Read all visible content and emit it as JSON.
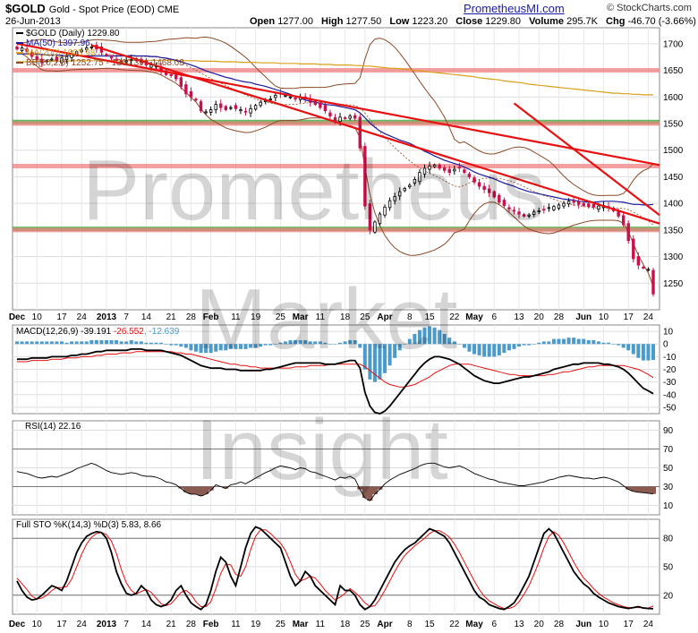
{
  "header": {
    "symbol": "$GOLD",
    "subtitle": "Gold - Spot Price (EOD)  CME",
    "date": "26-Jun-2013",
    "website": "PrometheusMI.com",
    "source": "© StockCharts.com",
    "ohlc": {
      "open_label": "Open",
      "open": "1277.00",
      "high_label": "High",
      "high": "1277.50",
      "low_label": "Low",
      "low": "1223.20",
      "close_label": "Close",
      "close": "1229.80",
      "volume_label": "Volume",
      "volume": "295.7K",
      "chg_label": "Chg",
      "chg": "-46.70 (-3.66%)"
    }
  },
  "watermark": {
    "line1": "Prometheus",
    "line2": "Market",
    "line3": "Insight"
  },
  "colors": {
    "up": "#000000",
    "down": "#c8104a",
    "ma50": "#1a1a9e",
    "ma200": "#d8a018",
    "bb": "#8b4a28",
    "trend": "#e81010",
    "support_green": "#2ea82e",
    "resist_pink": "#f08080",
    "macd_hist": "#4a9acc",
    "rsi_fill": "#8b5a50",
    "signal": "#e81010"
  },
  "chart_data": [
    {
      "type": "candlestick",
      "legend": [
        "$GOLD (Daily) 1229.80",
        "MA(50) 1397.96",
        "MA(200) 1603.98",
        "BB(20,2.0) 1252.75 - 1360.39 - 1468.03"
      ],
      "ylim": [
        1200,
        1730
      ],
      "yticks": [
        "1700",
        "1650",
        "1600",
        "1550",
        "1500",
        "1450",
        "1400",
        "1350",
        "1300",
        "1250"
      ],
      "xticks": [
        "Dec",
        "10",
        "17",
        "24",
        "2013",
        "7",
        "14",
        "21",
        "28",
        "Feb",
        "11",
        "19",
        "25",
        "Mar",
        "11",
        "18",
        "25",
        "Apr",
        "8",
        "15",
        "22",
        "May",
        "6",
        "13",
        "20",
        "28",
        "Jun",
        "10",
        "17",
        "24"
      ],
      "horizontal_levels": [
        {
          "value": 1650,
          "color": "pink"
        },
        {
          "value": 1553,
          "color": "green"
        },
        {
          "value": 1550,
          "color": "pink"
        },
        {
          "value": 1470,
          "color": "pink"
        },
        {
          "value": 1352,
          "color": "green"
        },
        {
          "value": 1350,
          "color": "pink"
        }
      ],
      "trendlines": [
        {
          "from": [
            0,
            1700
          ],
          "to": [
            144,
            1472
          ]
        },
        {
          "from": [
            15,
            1697
          ],
          "to": [
            144,
            1362
          ]
        },
        {
          "from": [
            100,
            1588
          ],
          "to": [
            144,
            1378
          ]
        }
      ],
      "closes": [
        1690,
        1692,
        1685,
        1676,
        1670,
        1664,
        1668,
        1671,
        1668,
        1673,
        1676,
        1680,
        1685,
        1688,
        1692,
        1694,
        1690,
        1684,
        1678,
        1673,
        1669,
        1666,
        1668,
        1670,
        1668,
        1664,
        1660,
        1660,
        1658,
        1650,
        1642,
        1640,
        1634,
        1620,
        1606,
        1600,
        1594,
        1574,
        1572,
        1576,
        1586,
        1580,
        1576,
        1580,
        1578,
        1576,
        1572,
        1578,
        1584,
        1590,
        1593,
        1596,
        1603,
        1606,
        1603,
        1600,
        1596,
        1600,
        1596,
        1590,
        1586,
        1580,
        1574,
        1564,
        1556,
        1562,
        1560,
        1564,
        1560,
        1504,
        1395,
        1350,
        1365,
        1380,
        1393,
        1405,
        1413,
        1422,
        1428,
        1434,
        1445,
        1458,
        1466,
        1470,
        1472,
        1466,
        1462,
        1458,
        1464,
        1467,
        1458,
        1450,
        1440,
        1432,
        1426,
        1420,
        1412,
        1402,
        1396,
        1390,
        1386,
        1380,
        1376,
        1378,
        1384,
        1386,
        1388,
        1392,
        1394,
        1397,
        1400,
        1404,
        1402,
        1398,
        1396,
        1394,
        1393,
        1395,
        1396,
        1392,
        1386,
        1376,
        1360,
        1330,
        1296,
        1284,
        1279,
        1276,
        1229.8
      ],
      "ma50": [
        1681,
        1681,
        1681,
        1681,
        1680,
        1680,
        1679,
        1679,
        1679,
        1678,
        1678,
        1678,
        1678,
        1677,
        1677,
        1677,
        1677,
        1677,
        1677,
        1677,
        1677,
        1677,
        1677,
        1678,
        1677,
        1677,
        1677,
        1676,
        1676,
        1674,
        1673,
        1671,
        1669,
        1666,
        1663,
        1660,
        1657,
        1653,
        1649,
        1646,
        1643,
        1640,
        1637,
        1635,
        1632,
        1630,
        1628,
        1627,
        1624,
        1622,
        1620,
        1617,
        1614,
        1611,
        1608,
        1605,
        1601,
        1598,
        1594,
        1592,
        1590,
        1588,
        1586,
        1585,
        1584,
        1582,
        1580,
        1578,
        1576,
        1570,
        1561,
        1551,
        1543,
        1536,
        1531,
        1527,
        1523,
        1519,
        1516,
        1513,
        1508,
        1503,
        1498,
        1494,
        1489,
        1485,
        1481,
        1478,
        1475,
        1472,
        1468,
        1464,
        1459,
        1455,
        1452,
        1449,
        1446,
        1442,
        1438,
        1435,
        1432,
        1428,
        1425,
        1422,
        1420,
        1418,
        1416,
        1414,
        1412,
        1410,
        1408,
        1407,
        1406,
        1404,
        1403,
        1402,
        1402,
        1403,
        1404,
        1404,
        1404,
        1403,
        1402,
        1400,
        1398,
        1398,
        1397,
        1397,
        1398
      ],
      "ma200": [
        1666,
        1666,
        1666,
        1667,
        1667,
        1667,
        1667,
        1667,
        1667,
        1667,
        1667,
        1668,
        1668,
        1668,
        1668,
        1668,
        1668,
        1668,
        1668,
        1668,
        1668,
        1668,
        1668,
        1669,
        1669,
        1669,
        1669,
        1669,
        1669,
        1669,
        1669,
        1669,
        1668,
        1668,
        1668,
        1668,
        1668,
        1667,
        1667,
        1667,
        1667,
        1666,
        1666,
        1666,
        1666,
        1665,
        1665,
        1665,
        1665,
        1664,
        1664,
        1664,
        1664,
        1663,
        1663,
        1663,
        1663,
        1662,
        1662,
        1662,
        1662,
        1661,
        1661,
        1661,
        1660,
        1660,
        1660,
        1660,
        1659,
        1659,
        1658,
        1658,
        1657,
        1656,
        1655,
        1654,
        1654,
        1653,
        1652,
        1651,
        1650,
        1649,
        1648,
        1647,
        1646,
        1645,
        1644,
        1643,
        1642,
        1641,
        1640,
        1639,
        1638,
        1636,
        1635,
        1634,
        1633,
        1632,
        1630,
        1629,
        1628,
        1627,
        1626,
        1624,
        1623,
        1622,
        1621,
        1620,
        1619,
        1618,
        1617,
        1616,
        1615,
        1614,
        1613,
        1612,
        1611,
        1610,
        1609,
        1608,
        1607,
        1607,
        1606,
        1606,
        1605,
        1605,
        1604,
        1604,
        1604
      ]
    },
    {
      "type": "line+histogram",
      "legend": [
        "MACD(12,26,9) -39.191",
        "-26.552",
        "-12.639"
      ],
      "ylim": [
        -55,
        15
      ],
      "yticks": [
        "10",
        "0",
        "-10",
        "-20",
        "-30",
        "-40",
        "-50"
      ],
      "macd_line": [
        -12,
        -12,
        -12,
        -11,
        -11,
        -11,
        -11,
        -10,
        -10,
        -10,
        -10,
        -9,
        -9,
        -8,
        -8,
        -7,
        -6,
        -6,
        -5,
        -5,
        -5,
        -5,
        -5,
        -4,
        -4,
        -4,
        -5,
        -5,
        -5,
        -5,
        -6,
        -7,
        -8,
        -9,
        -11,
        -13,
        -15,
        -17,
        -18,
        -19,
        -19,
        -19,
        -20,
        -20,
        -20,
        -21,
        -21,
        -21,
        -21,
        -21,
        -20,
        -20,
        -19,
        -18,
        -17,
        -16,
        -15,
        -15,
        -15,
        -15,
        -15,
        -15,
        -16,
        -16,
        -16,
        -15,
        -14,
        -13,
        -13,
        -19,
        -38,
        -49,
        -54,
        -55,
        -53,
        -49,
        -44,
        -39,
        -34,
        -29,
        -24,
        -19,
        -15,
        -12,
        -10,
        -10,
        -11,
        -12,
        -14,
        -16,
        -19,
        -22,
        -25,
        -27,
        -29,
        -30,
        -31,
        -31,
        -30,
        -29,
        -28,
        -27,
        -26,
        -26,
        -25,
        -24,
        -23,
        -22,
        -20,
        -19,
        -18,
        -17,
        -16,
        -16,
        -15,
        -15,
        -15,
        -15,
        -16,
        -16,
        -17,
        -18,
        -20,
        -23,
        -27,
        -31,
        -35,
        -37,
        -39.2
      ],
      "signal_line": [
        -14,
        -14,
        -14,
        -13,
        -13,
        -13,
        -13,
        -12,
        -12,
        -12,
        -11,
        -11,
        -11,
        -10,
        -10,
        -10,
        -9,
        -9,
        -8,
        -8,
        -8,
        -7,
        -7,
        -7,
        -6,
        -6,
        -6,
        -6,
        -6,
        -6,
        -6,
        -6,
        -7,
        -7,
        -8,
        -8,
        -9,
        -10,
        -11,
        -12,
        -13,
        -14,
        -15,
        -16,
        -16,
        -17,
        -17,
        -18,
        -18,
        -19,
        -19,
        -19,
        -19,
        -19,
        -19,
        -19,
        -18,
        -18,
        -18,
        -17,
        -17,
        -17,
        -17,
        -16,
        -16,
        -16,
        -16,
        -16,
        -16,
        -16,
        -18,
        -21,
        -24,
        -27,
        -30,
        -32,
        -33,
        -34,
        -34,
        -33,
        -32,
        -30,
        -28,
        -26,
        -23,
        -21,
        -19,
        -17,
        -16,
        -16,
        -16,
        -16,
        -17,
        -18,
        -19,
        -20,
        -21,
        -22,
        -23,
        -24,
        -24,
        -25,
        -25,
        -25,
        -25,
        -25,
        -25,
        -24,
        -24,
        -23,
        -22,
        -22,
        -21,
        -20,
        -19,
        -18,
        -18,
        -17,
        -17,
        -17,
        -17,
        -17,
        -17,
        -18,
        -19,
        -20,
        -22,
        -24,
        -26.6
      ]
    },
    {
      "type": "line",
      "legend": [
        "RSI(14) 22.16"
      ],
      "ylim": [
        0,
        100
      ],
      "yticks": [
        "90",
        "70",
        "50",
        "30",
        "10"
      ],
      "rsi": [
        46,
        45,
        44,
        42,
        40,
        39,
        40,
        41,
        40,
        42,
        44,
        46,
        49,
        51,
        53,
        55,
        53,
        50,
        47,
        45,
        44,
        43,
        44,
        45,
        44,
        42,
        41,
        41,
        40,
        38,
        35,
        34,
        32,
        28,
        24,
        22,
        22,
        20,
        22,
        26,
        32,
        30,
        28,
        32,
        33,
        35,
        33,
        36,
        39,
        42,
        45,
        47,
        50,
        52,
        51,
        50,
        48,
        50,
        49,
        46,
        45,
        43,
        41,
        39,
        37,
        40,
        39,
        41,
        38,
        27,
        18,
        15,
        22,
        27,
        33,
        37,
        40,
        43,
        45,
        47,
        49,
        52,
        54,
        55,
        55,
        53,
        51,
        50,
        51,
        52,
        50,
        47,
        44,
        42,
        40,
        38,
        37,
        35,
        34,
        33,
        32,
        31,
        31,
        32,
        33,
        34,
        35,
        37,
        38,
        40,
        41,
        42,
        41,
        40,
        39,
        39,
        38,
        39,
        40,
        39,
        37,
        35,
        31,
        27,
        25,
        24,
        23.5,
        23,
        22.16
      ]
    },
    {
      "type": "line",
      "legend": [
        "Full STO %K(14,3) %D(3) 5.83, 8.66"
      ],
      "ylim": [
        0,
        100
      ],
      "yticks": [
        "80",
        "50",
        "20"
      ],
      "k": [
        35,
        25,
        18,
        15,
        16,
        20,
        25,
        30,
        28,
        25,
        35,
        50,
        65,
        75,
        82,
        85,
        87,
        86,
        80,
        65,
        45,
        32,
        22,
        20,
        22,
        30,
        25,
        15,
        10,
        8,
        10,
        15,
        25,
        30,
        20,
        12,
        8,
        5,
        10,
        25,
        45,
        60,
        55,
        40,
        30,
        50,
        70,
        85,
        92,
        90,
        85,
        80,
        75,
        70,
        55,
        40,
        30,
        35,
        45,
        40,
        30,
        25,
        20,
        15,
        10,
        30,
        25,
        25,
        20,
        10,
        5,
        8,
        15,
        25,
        35,
        45,
        55,
        62,
        68,
        72,
        75,
        80,
        85,
        90,
        88,
        85,
        82,
        75,
        65,
        55,
        45,
        35,
        25,
        18,
        15,
        10,
        8,
        6,
        5,
        8,
        12,
        20,
        30,
        40,
        55,
        70,
        85,
        90,
        85,
        75,
        65,
        55,
        45,
        38,
        32,
        28,
        22,
        18,
        15,
        12,
        10,
        8,
        7,
        6,
        7,
        8,
        6.5,
        6,
        5.83
      ],
      "d": [
        38,
        32,
        26,
        19,
        16,
        17,
        20,
        25,
        28,
        28,
        29,
        37,
        50,
        63,
        74,
        81,
        85,
        86,
        84,
        77,
        64,
        47,
        33,
        25,
        21,
        24,
        26,
        23,
        17,
        11,
        9,
        11,
        17,
        23,
        25,
        21,
        13,
        8,
        8,
        13,
        27,
        43,
        53,
        52,
        42,
        40,
        50,
        68,
        82,
        89,
        89,
        85,
        80,
        75,
        67,
        55,
        42,
        35,
        37,
        40,
        38,
        32,
        25,
        20,
        15,
        18,
        22,
        27,
        23,
        18,
        12,
        8,
        9,
        16,
        25,
        35,
        45,
        54,
        62,
        67,
        72,
        76,
        80,
        85,
        88,
        88,
        85,
        81,
        74,
        65,
        55,
        45,
        35,
        26,
        19,
        14,
        11,
        8,
        6,
        6,
        8,
        13,
        21,
        30,
        42,
        55,
        70,
        82,
        87,
        83,
        75,
        65,
        55,
        46,
        38,
        33,
        27,
        22,
        18,
        15,
        12,
        10,
        8,
        7,
        7,
        7,
        7,
        6.5,
        8.66
      ]
    }
  ]
}
